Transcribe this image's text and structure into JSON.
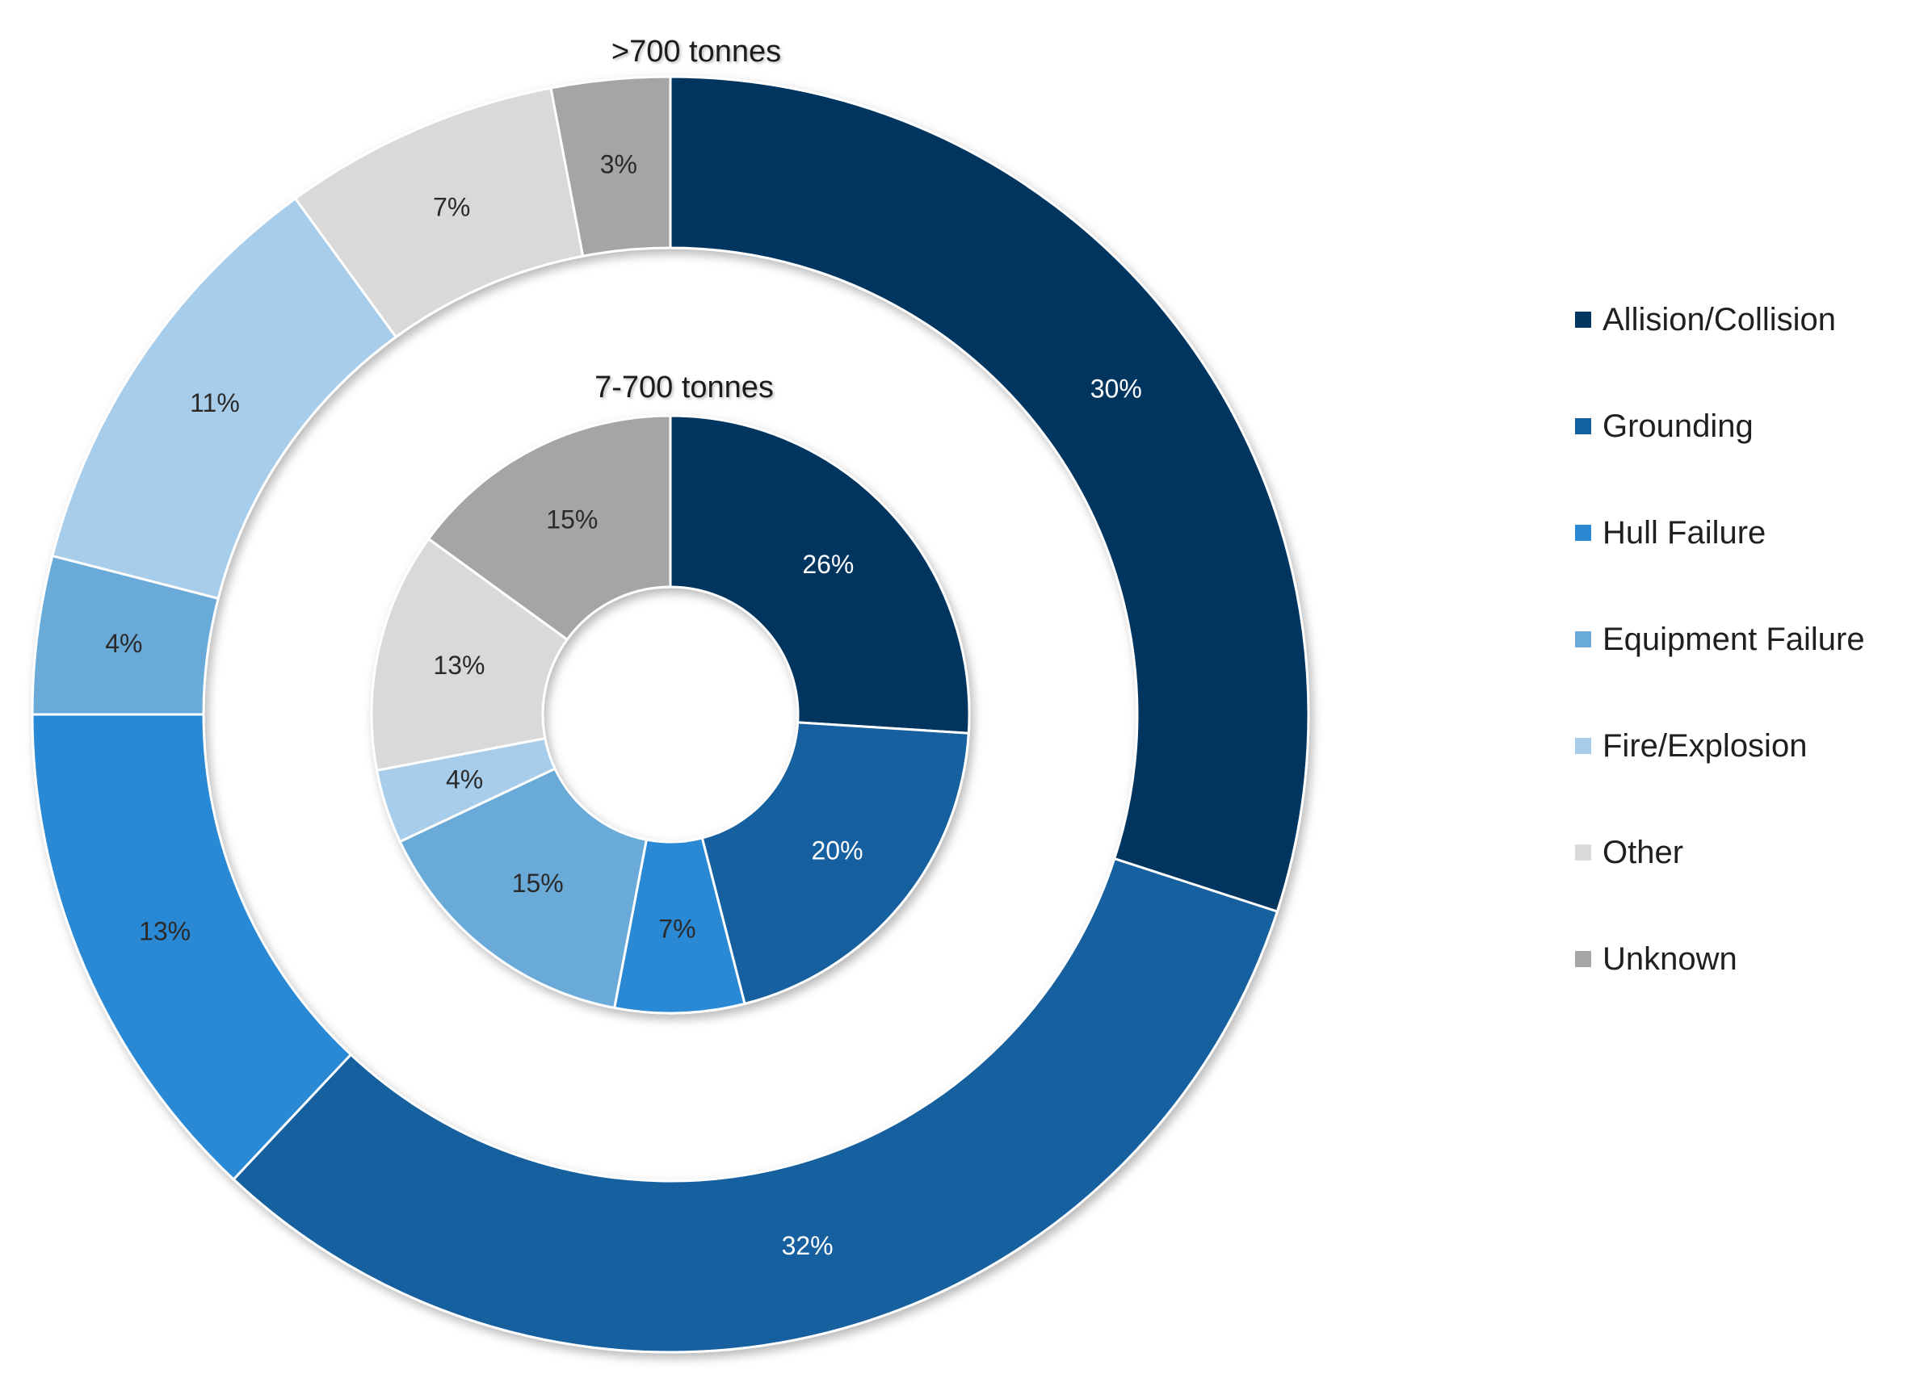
{
  "chart_data": {
    "type": "donut",
    "categories": [
      "Allision/Collision",
      "Grounding",
      "Hull Failure",
      "Equipment Failure",
      "Fire/Explosion",
      "Other",
      "Unknown"
    ],
    "colors": [
      "#003660",
      "#12609f",
      "#2b89d4",
      "#6aaad8",
      "#a7cdea",
      "#d9d9d9",
      "#a5a5a5"
    ],
    "series": [
      {
        "name": ">700 tonnes",
        "ring": "outer",
        "values": [
          30,
          32,
          13,
          4,
          11,
          7,
          3
        ],
        "labels": [
          "30%",
          "32%",
          "13%",
          "4%",
          "11%",
          "7%",
          "3%"
        ]
      },
      {
        "name": "7-700 tonnes",
        "ring": "inner",
        "values": [
          26,
          20,
          7,
          15,
          4,
          13,
          15
        ],
        "labels": [
          "26%",
          "20%",
          "7%",
          "15%",
          "4%",
          "13%",
          "15%"
        ]
      }
    ],
    "legend": {
      "position": "right",
      "items": [
        "Allision/Collision",
        "Grounding",
        "Hull Failure",
        "Equipment Failure",
        "Fire/Explosion",
        "Other",
        "Unknown"
      ]
    },
    "label_colors": {
      "dark": "#ffffff",
      "light": "#2a2a2a"
    }
  }
}
